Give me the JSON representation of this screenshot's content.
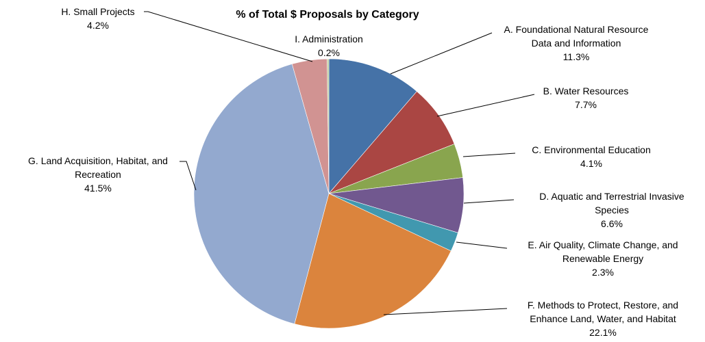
{
  "chart_data": {
    "type": "pie",
    "title": "% of Total $ Proposals by Category",
    "slices": [
      {
        "lines": [
          "A. Foundational Natural Resource",
          "Data and Information"
        ],
        "pct_label": "11.3%",
        "value": 11.3,
        "color": "#4572A7"
      },
      {
        "lines": [
          "B. Water Resources"
        ],
        "pct_label": "7.7%",
        "value": 7.7,
        "color": "#AA4643"
      },
      {
        "lines": [
          "C. Environmental Education"
        ],
        "pct_label": "4.1%",
        "value": 4.1,
        "color": "#89A54E"
      },
      {
        "lines": [
          "D. Aquatic and Terrestrial Invasive",
          "Species"
        ],
        "pct_label": "6.6%",
        "value": 6.6,
        "color": "#71588F"
      },
      {
        "lines": [
          "E. Air Quality, Climate Change, and",
          "Renewable Energy"
        ],
        "pct_label": "2.3%",
        "value": 2.3,
        "color": "#4198AF"
      },
      {
        "lines": [
          "F. Methods to Protect, Restore, and",
          "Enhance Land, Water, and Habitat"
        ],
        "pct_label": "22.1%",
        "value": 22.1,
        "color": "#DB843D"
      },
      {
        "lines": [
          "G. Land Acquisition, Habitat, and",
          "Recreation"
        ],
        "pct_label": "41.5%",
        "value": 41.5,
        "color": "#93A9CF"
      },
      {
        "lines": [
          "H. Small Projects"
        ],
        "pct_label": "4.2%",
        "value": 4.2,
        "color": "#D19392"
      },
      {
        "lines": [
          "I. Administration"
        ],
        "pct_label": "0.2%",
        "value": 0.2,
        "color": "#B9CD96"
      }
    ]
  }
}
